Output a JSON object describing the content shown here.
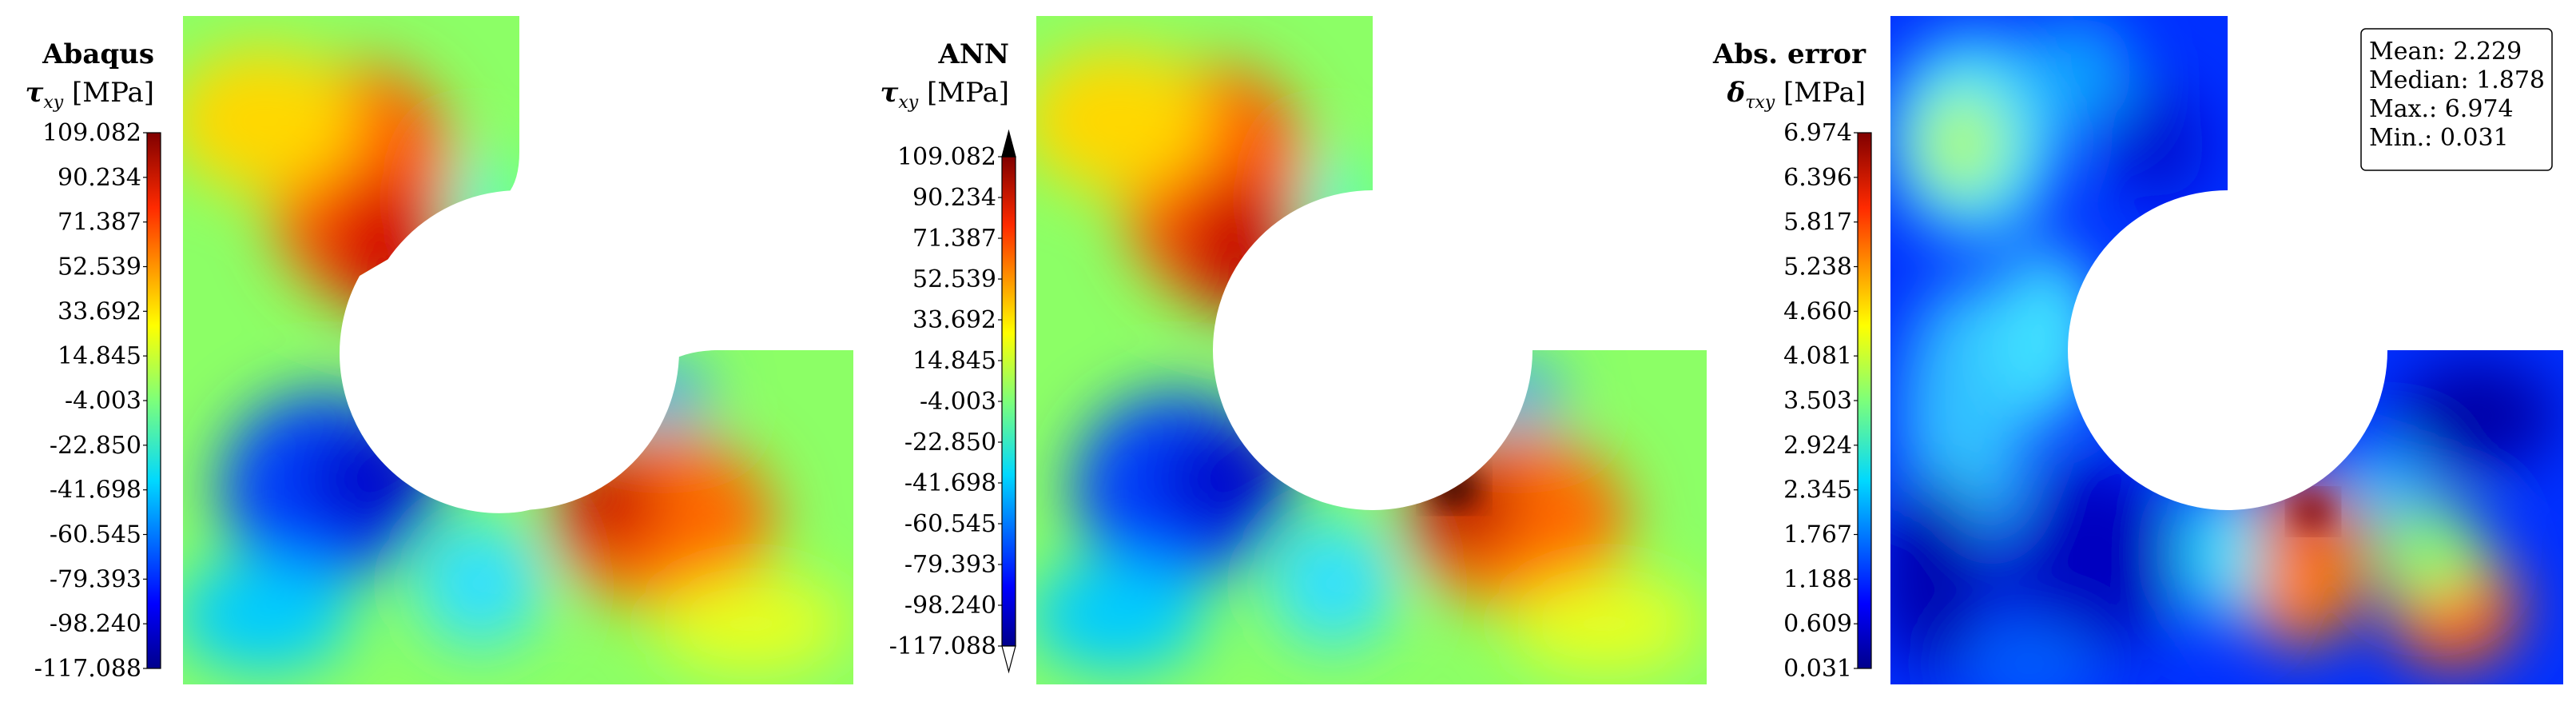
{
  "chart_data": [
    {
      "type": "heatmap",
      "title": "Abaqus",
      "quantity_symbol": "τ",
      "quantity_subscript": "xy",
      "unit": "[MPa]",
      "colormap": "jet",
      "colorbar_ticks": [
        "109.082",
        "90.234",
        "71.387",
        "52.539",
        "33.692",
        "14.845",
        "-4.003",
        "-22.850",
        "-41.698",
        "-60.545",
        "-79.393",
        "-98.240",
        "-117.088"
      ],
      "range": [
        -117.088,
        109.082
      ],
      "colorbar_extend": "none"
    },
    {
      "type": "heatmap",
      "title": "ANN",
      "quantity_symbol": "τ",
      "quantity_subscript": "xy",
      "unit": "[MPa]",
      "colormap": "jet",
      "colorbar_ticks": [
        "109.082",
        "90.234",
        "71.387",
        "52.539",
        "33.692",
        "14.845",
        "-4.003",
        "-22.850",
        "-41.698",
        "-60.545",
        "-79.393",
        "-98.240",
        "-117.088"
      ],
      "range": [
        -117.088,
        109.082
      ],
      "colorbar_extend": "both"
    },
    {
      "type": "heatmap",
      "title": "Abs. error",
      "quantity_symbol": "δ",
      "quantity_subscript": "τxy",
      "unit": "[MPa]",
      "colormap": "jet",
      "colorbar_ticks": [
        "6.974",
        "6.396",
        "5.817",
        "5.238",
        "4.660",
        "4.081",
        "3.503",
        "2.924",
        "2.345",
        "1.767",
        "1.188",
        "0.609",
        "0.031"
      ],
      "range": [
        0.031,
        6.974
      ],
      "colorbar_extend": "none",
      "stats": [
        "Mean: 2.229",
        "Median: 1.878",
        "Max.: 6.974",
        "Min.: 0.031"
      ]
    }
  ]
}
